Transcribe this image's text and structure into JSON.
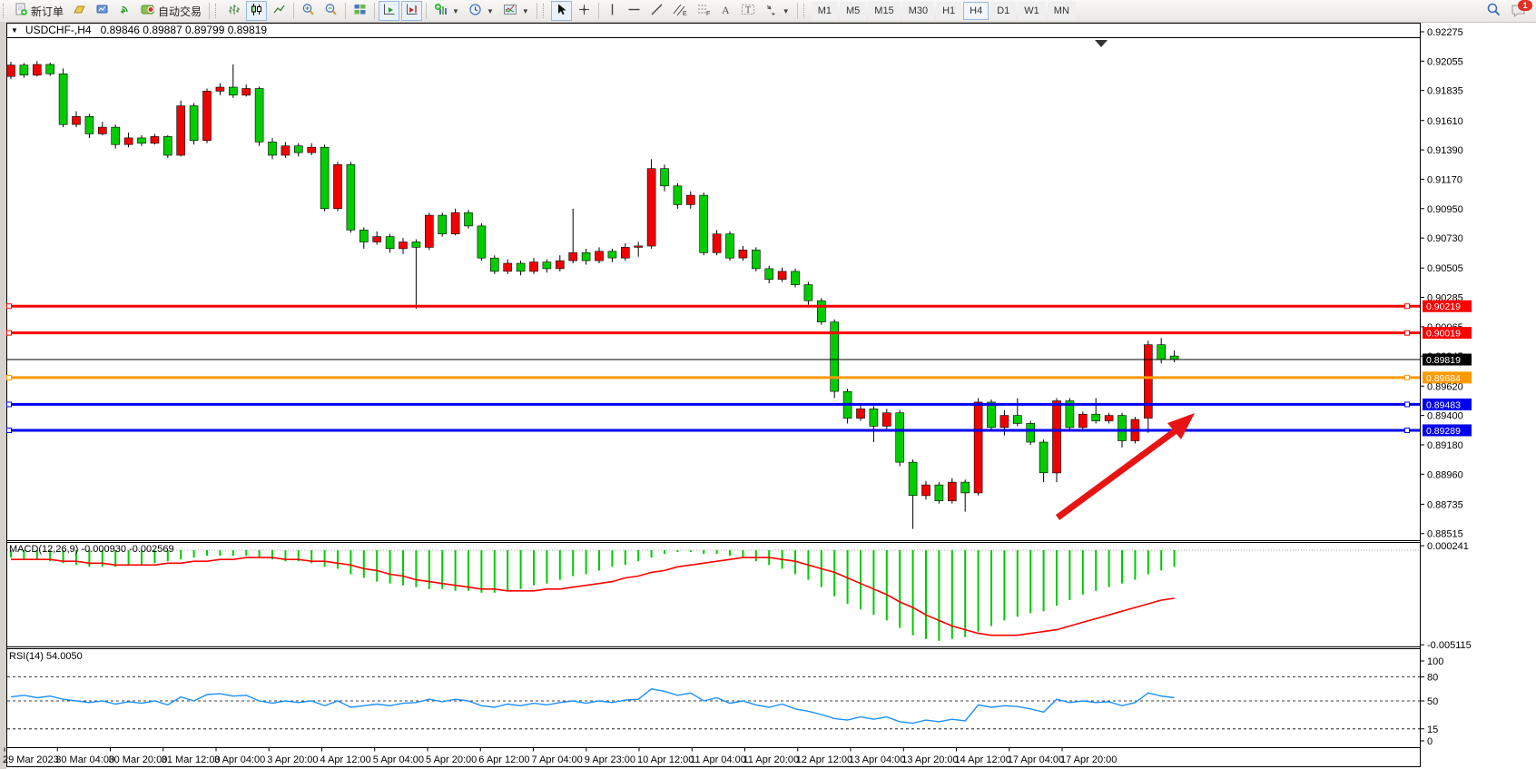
{
  "toolbar": {
    "new_order_label": "新订单",
    "auto_trading_label": "自动交易",
    "timeframes": [
      "M1",
      "M5",
      "M15",
      "M30",
      "H1",
      "H4",
      "D1",
      "W1",
      "MN"
    ],
    "active_timeframe": "H4",
    "chat_badge": "1",
    "icons": [
      "new-order-icon",
      "profiles-icon",
      "editor-icon",
      "signal-icon",
      "auto-trading-icon",
      "bar-chart-icon",
      "candlestick-icon",
      "line-chart-icon",
      "zoom-in-icon",
      "zoom-out-icon",
      "tile-windows-icon",
      "auto-scroll-icon",
      "chart-shift-icon",
      "indicators-icon",
      "periods-icon",
      "templates-icon",
      "cursor-icon",
      "crosshair-icon",
      "vertical-line-icon",
      "horizontal-line-icon",
      "trendline-icon",
      "channel-icon",
      "fibonacci-icon",
      "text-icon",
      "text-label-icon",
      "arrows-icon",
      "search-icon",
      "chat-icon"
    ]
  },
  "caption": {
    "symbol_period": "USDCHF-,H4",
    "ohlc": "0.89846 0.89887 0.89799 0.89819"
  },
  "price_axis": {
    "ticks": [
      "0.92275",
      "0.92055",
      "0.91835",
      "0.91610",
      "0.91390",
      "0.91170",
      "0.90950",
      "0.90730",
      "0.90505",
      "0.90285",
      "0.90065",
      "0.89845",
      "0.89620",
      "0.89400",
      "0.89180",
      "0.88960",
      "0.88735",
      "0.88515"
    ]
  },
  "hlines": [
    {
      "price": 0.90219,
      "label": "0.90219",
      "color": "#ff0000",
      "width": 3,
      "kind": "resistance"
    },
    {
      "price": 0.90019,
      "label": "0.90019",
      "color": "#ff0000",
      "width": 3,
      "kind": "resistance"
    },
    {
      "price": 0.89819,
      "label": "0.89819",
      "color": "#000000",
      "width": 1,
      "kind": "current-price"
    },
    {
      "price": 0.89684,
      "label": "0.89684",
      "color": "#ff9900",
      "width": 3,
      "kind": "level"
    },
    {
      "price": 0.89483,
      "label": "0.89483",
      "color": "#0000ee",
      "width": 3,
      "kind": "support"
    },
    {
      "price": 0.89289,
      "label": "0.89289",
      "color": "#0000ee",
      "width": 3,
      "kind": "support"
    }
  ],
  "colors": {
    "bull_candle": "#f20000",
    "bear_candle": "#00cc00",
    "macd_histogram": "#00cc00",
    "macd_signal": "#ff0000",
    "rsi_line": "#1e90ff",
    "arrow": "#e81414"
  },
  "chart_data": {
    "type": "candlestick",
    "symbol": "USDCHF",
    "period": "H4",
    "note": "red = bullish, green = bearish",
    "candles": [
      [
        0.9194,
        0.9205,
        0.9192,
        0.92025
      ],
      [
        0.92025,
        0.9204,
        0.9193,
        0.9195
      ],
      [
        0.9195,
        0.92055,
        0.9194,
        0.9203
      ],
      [
        0.9203,
        0.92045,
        0.91945,
        0.9196
      ],
      [
        0.9196,
        0.92,
        0.9156,
        0.9158
      ],
      [
        0.9158,
        0.9168,
        0.9156,
        0.9164
      ],
      [
        0.9164,
        0.9166,
        0.9148,
        0.9151
      ],
      [
        0.9151,
        0.916,
        0.915,
        0.9156
      ],
      [
        0.9156,
        0.9158,
        0.914,
        0.9143
      ],
      [
        0.9143,
        0.9152,
        0.9141,
        0.9148
      ],
      [
        0.9148,
        0.915,
        0.9142,
        0.9144
      ],
      [
        0.9144,
        0.9151,
        0.9143,
        0.9149
      ],
      [
        0.9149,
        0.915,
        0.9133,
        0.9135
      ],
      [
        0.9135,
        0.9176,
        0.9134,
        0.9172
      ],
      [
        0.9172,
        0.9174,
        0.9143,
        0.9146
      ],
      [
        0.9146,
        0.9185,
        0.9144,
        0.9183
      ],
      [
        0.9183,
        0.9189,
        0.918,
        0.9186
      ],
      [
        0.9186,
        0.9203,
        0.9178,
        0.918
      ],
      [
        0.918,
        0.9188,
        0.9179,
        0.9185
      ],
      [
        0.9185,
        0.91865,
        0.9142,
        0.9145
      ],
      [
        0.9145,
        0.9148,
        0.9132,
        0.9135
      ],
      [
        0.9135,
        0.9145,
        0.9133,
        0.9142
      ],
      [
        0.9142,
        0.9144,
        0.9134,
        0.9137
      ],
      [
        0.9137,
        0.9144,
        0.9135,
        0.9141
      ],
      [
        0.9141,
        0.9143,
        0.9093,
        0.9095
      ],
      [
        0.9095,
        0.913,
        0.9093,
        0.9128
      ],
      [
        0.9128,
        0.913,
        0.9077,
        0.9079
      ],
      [
        0.9079,
        0.9081,
        0.9065,
        0.907
      ],
      [
        0.907,
        0.9078,
        0.9068,
        0.9074
      ],
      [
        0.9074,
        0.9076,
        0.9062,
        0.9065
      ],
      [
        0.9065,
        0.9073,
        0.9061,
        0.907
      ],
      [
        0.907,
        0.9072,
        0.902,
        0.9066
      ],
      [
        0.9066,
        0.9092,
        0.9064,
        0.909
      ],
      [
        0.909,
        0.9092,
        0.9074,
        0.9076
      ],
      [
        0.9076,
        0.9095,
        0.9075,
        0.9092
      ],
      [
        0.9092,
        0.9094,
        0.908,
        0.9082
      ],
      [
        0.9082,
        0.9084,
        0.9056,
        0.9058
      ],
      [
        0.9058,
        0.906,
        0.9046,
        0.9048
      ],
      [
        0.9048,
        0.9057,
        0.9046,
        0.9054
      ],
      [
        0.9054,
        0.9056,
        0.9045,
        0.9048
      ],
      [
        0.9048,
        0.9058,
        0.9046,
        0.9055
      ],
      [
        0.9055,
        0.9057,
        0.9047,
        0.905
      ],
      [
        0.905,
        0.906,
        0.9048,
        0.9056
      ],
      [
        0.9056,
        0.9095,
        0.9054,
        0.9062
      ],
      [
        0.9062,
        0.9065,
        0.9053,
        0.9056
      ],
      [
        0.9056,
        0.9066,
        0.9054,
        0.9063
      ],
      [
        0.9063,
        0.9065,
        0.9055,
        0.9058
      ],
      [
        0.9058,
        0.9069,
        0.9056,
        0.9066
      ],
      [
        0.9066,
        0.907,
        0.9059,
        0.9067
      ],
      [
        0.9067,
        0.9132,
        0.9065,
        0.9125
      ],
      [
        0.9125,
        0.9128,
        0.9108,
        0.9112
      ],
      [
        0.9112,
        0.9114,
        0.9095,
        0.9098
      ],
      [
        0.9098,
        0.9108,
        0.9095,
        0.9105
      ],
      [
        0.9105,
        0.9107,
        0.906,
        0.9062
      ],
      [
        0.9062,
        0.9079,
        0.906,
        0.9076
      ],
      [
        0.9076,
        0.9078,
        0.9056,
        0.9058
      ],
      [
        0.9058,
        0.9067,
        0.9056,
        0.9064
      ],
      [
        0.9064,
        0.9066,
        0.9048,
        0.905
      ],
      [
        0.905,
        0.9052,
        0.9039,
        0.9042
      ],
      [
        0.9042,
        0.9051,
        0.904,
        0.9048
      ],
      [
        0.9048,
        0.905,
        0.9036,
        0.9038
      ],
      [
        0.9038,
        0.904,
        0.9023,
        0.9026
      ],
      [
        0.9026,
        0.9028,
        0.9008,
        0.901
      ],
      [
        0.901,
        0.9012,
        0.8953,
        0.8958
      ],
      [
        0.8958,
        0.896,
        0.8934,
        0.8938
      ],
      [
        0.8938,
        0.8948,
        0.8936,
        0.8945
      ],
      [
        0.8945,
        0.8947,
        0.892,
        0.8932
      ],
      [
        0.8932,
        0.8945,
        0.893,
        0.8942
      ],
      [
        0.8942,
        0.8944,
        0.8902,
        0.8905
      ],
      [
        0.8905,
        0.8907,
        0.8855,
        0.888
      ],
      [
        0.888,
        0.8891,
        0.8877,
        0.8888
      ],
      [
        0.8888,
        0.889,
        0.8874,
        0.8876
      ],
      [
        0.8876,
        0.8893,
        0.8874,
        0.889
      ],
      [
        0.889,
        0.8892,
        0.8868,
        0.8882
      ],
      [
        0.8882,
        0.8953,
        0.888,
        0.895
      ],
      [
        0.895,
        0.8952,
        0.8929,
        0.8931
      ],
      [
        0.8931,
        0.8944,
        0.8925,
        0.894
      ],
      [
        0.894,
        0.8953,
        0.8932,
        0.8934
      ],
      [
        0.8934,
        0.8936,
        0.8918,
        0.892
      ],
      [
        0.892,
        0.8922,
        0.889,
        0.8897
      ],
      [
        0.8897,
        0.8953,
        0.889,
        0.8951
      ],
      [
        0.8951,
        0.8953,
        0.8929,
        0.8931
      ],
      [
        0.8931,
        0.8943,
        0.8929,
        0.8941
      ],
      [
        0.8941,
        0.8953,
        0.8934,
        0.8936
      ],
      [
        0.8936,
        0.8942,
        0.8934,
        0.894
      ],
      [
        0.894,
        0.8942,
        0.8916,
        0.8921
      ],
      [
        0.8921,
        0.8939,
        0.8919,
        0.8937
      ],
      [
        0.8938,
        0.8996,
        0.8927,
        0.8993
      ],
      [
        0.8993,
        0.8998,
        0.8979,
        0.8982
      ],
      [
        0.89846,
        0.89887,
        0.89799,
        0.89819
      ]
    ]
  },
  "macd": {
    "label": "MACD(12,26,9) -0.000930 -0.002569",
    "axis_ticks": [
      "0.000241",
      "-0.005115"
    ],
    "axis_values": [
      0.000241,
      -0.005115
    ],
    "histogram": [
      -0.0004,
      -0.0005,
      -0.0005,
      -0.0006,
      -0.0007,
      -0.0008,
      -0.0009,
      -0.0009,
      -0.0009,
      -0.0008,
      -0.0008,
      -0.0007,
      -0.0006,
      -0.0005,
      -0.0004,
      -0.0003,
      -0.0003,
      -0.0003,
      -0.0003,
      -0.0004,
      -0.0005,
      -0.0006,
      -0.0006,
      -0.0007,
      -0.0009,
      -0.001,
      -0.0013,
      -0.0015,
      -0.0017,
      -0.0018,
      -0.0019,
      -0.002,
      -0.0021,
      -0.0021,
      -0.0022,
      -0.0022,
      -0.0023,
      -0.0023,
      -0.0022,
      -0.0021,
      -0.0019,
      -0.0018,
      -0.0016,
      -0.0014,
      -0.0013,
      -0.0011,
      -0.0009,
      -0.0008,
      -0.0006,
      -0.0004,
      -0.0002,
      -0.0001,
      -0.0001,
      -0.0002,
      -0.0002,
      -0.0003,
      -0.0004,
      -0.0006,
      -0.0008,
      -0.001,
      -0.0013,
      -0.0016,
      -0.002,
      -0.0025,
      -0.0029,
      -0.0032,
      -0.0035,
      -0.0038,
      -0.0042,
      -0.0046,
      -0.0048,
      -0.0049,
      -0.0048,
      -0.0047,
      -0.0044,
      -0.0041,
      -0.0038,
      -0.0036,
      -0.0034,
      -0.0033,
      -0.003,
      -0.0027,
      -0.0024,
      -0.0022,
      -0.002,
      -0.0018,
      -0.0016,
      -0.0013,
      -0.0011,
      -0.0009
    ],
    "signal": [
      -0.0005,
      -0.0005,
      -0.0005,
      -0.0005,
      -0.0006,
      -0.0006,
      -0.0007,
      -0.0007,
      -0.0008,
      -0.0008,
      -0.0008,
      -0.0008,
      -0.0007,
      -0.0007,
      -0.0006,
      -0.0006,
      -0.0005,
      -0.0005,
      -0.0004,
      -0.0004,
      -0.0004,
      -0.0005,
      -0.0005,
      -0.0006,
      -0.0006,
      -0.0007,
      -0.0008,
      -0.001,
      -0.0011,
      -0.0013,
      -0.0014,
      -0.0016,
      -0.0017,
      -0.0018,
      -0.0019,
      -0.002,
      -0.0021,
      -0.0021,
      -0.0022,
      -0.0022,
      -0.0022,
      -0.0021,
      -0.0021,
      -0.002,
      -0.0019,
      -0.0018,
      -0.0017,
      -0.0015,
      -0.0014,
      -0.0012,
      -0.0011,
      -0.0009,
      -0.0008,
      -0.0007,
      -0.0006,
      -0.0005,
      -0.0004,
      -0.0004,
      -0.0004,
      -0.0005,
      -0.0006,
      -0.0008,
      -0.001,
      -0.0012,
      -0.0015,
      -0.0018,
      -0.0021,
      -0.0024,
      -0.0028,
      -0.0031,
      -0.0035,
      -0.0038,
      -0.0041,
      -0.0043,
      -0.0045,
      -0.0046,
      -0.0046,
      -0.0046,
      -0.0045,
      -0.0044,
      -0.0043,
      -0.0041,
      -0.0039,
      -0.0037,
      -0.0035,
      -0.0033,
      -0.0031,
      -0.0029,
      -0.0027,
      -0.0026
    ]
  },
  "rsi": {
    "label": "RSI(14) 54.0050",
    "levels": [
      100,
      80,
      50,
      15,
      0
    ],
    "values": [
      55,
      57,
      54,
      56,
      52,
      50,
      48,
      50,
      46,
      49,
      47,
      50,
      45,
      55,
      50,
      58,
      59,
      56,
      57,
      50,
      47,
      50,
      48,
      50,
      44,
      50,
      42,
      44,
      46,
      44,
      47,
      48,
      52,
      49,
      52,
      50,
      44,
      42,
      46,
      44,
      47,
      45,
      48,
      50,
      47,
      50,
      48,
      51,
      52,
      65,
      62,
      57,
      60,
      50,
      54,
      47,
      50,
      45,
      42,
      46,
      40,
      37,
      33,
      28,
      26,
      30,
      27,
      30,
      24,
      22,
      26,
      24,
      27,
      25,
      45,
      42,
      44,
      43,
      40,
      36,
      52,
      48,
      50,
      48,
      49,
      44,
      48,
      60,
      56,
      54
    ]
  },
  "time_axis": {
    "labels": [
      "29 Mar 2023",
      "30 Mar 04:00",
      "30 Mar 20:00",
      "31 Mar 12:00",
      "3 Apr 04:00",
      "3 Apr 20:00",
      "4 Apr 12:00",
      "5 Apr 04:00",
      "5 Apr 20:00",
      "6 Apr 12:00",
      "7 Apr 04:00",
      "9 Apr 23:00",
      "10 Apr 12:00",
      "11 Apr 04:00",
      "11 Apr 20:00",
      "12 Apr 12:00",
      "13 Apr 04:00",
      "13 Apr 20:00",
      "14 Apr 12:00",
      "17 Apr 04:00",
      "17 Apr 20:00"
    ]
  },
  "annotations": {
    "arrow": {
      "direction": "up-right",
      "color": "#e81414"
    }
  }
}
